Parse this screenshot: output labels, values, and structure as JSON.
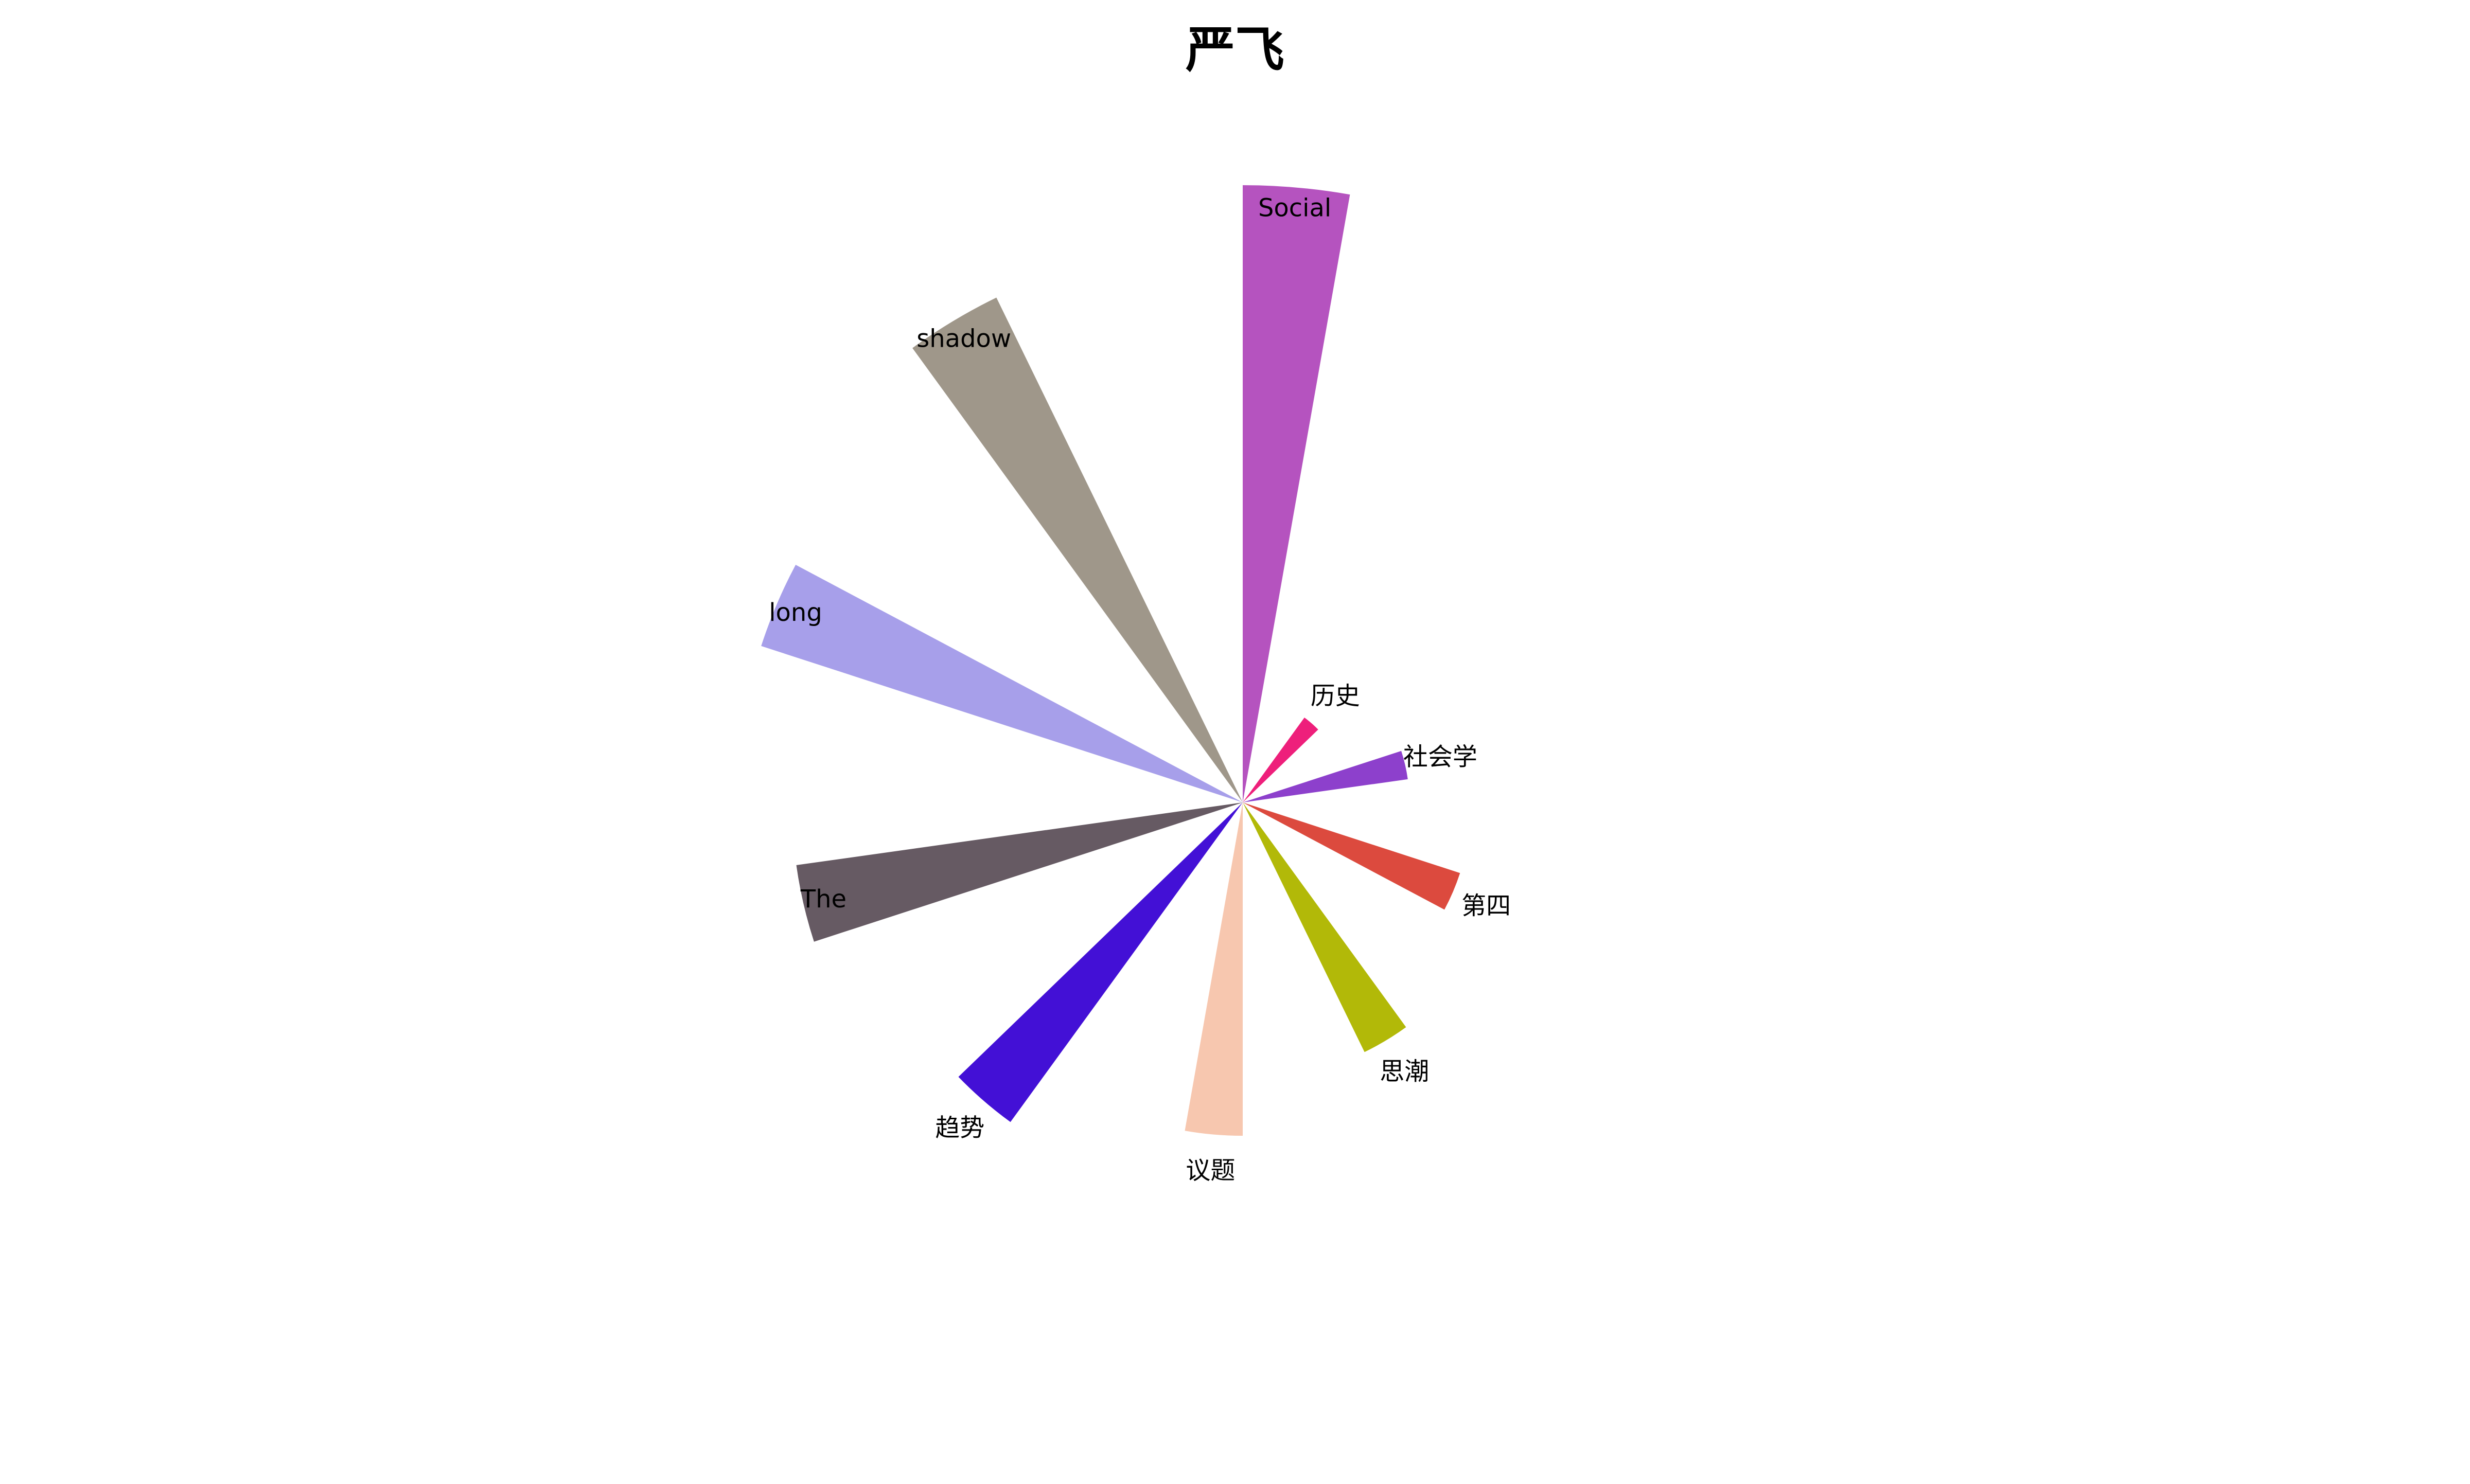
{
  "chart_data": {
    "type": "pie",
    "subtype": "nightingale-rose",
    "title": "严飞",
    "legend": "none",
    "radius_max_value": 100,
    "slices": [
      {
        "label": "Social",
        "value": 100,
        "color": "#B553BF"
      },
      {
        "label": "历史",
        "value": 17,
        "color": "#EE1F7B"
      },
      {
        "label": "社会学",
        "value": 27,
        "color": "#8D40CC"
      },
      {
        "label": "第四",
        "value": 37,
        "color": "#DC4A3E"
      },
      {
        "label": "思潮",
        "value": 45,
        "color": "#B2B908"
      },
      {
        "label": "议题",
        "value": 54,
        "color": "#F7C7AF"
      },
      {
        "label": "趋势",
        "value": 64,
        "color": "#4310D6"
      },
      {
        "label": "The",
        "value": 73,
        "color": "#665A63"
      },
      {
        "label": "long",
        "value": 82,
        "color": "#A79FEA"
      },
      {
        "label": "shadow",
        "value": 91,
        "color": "#9F978A"
      }
    ]
  }
}
